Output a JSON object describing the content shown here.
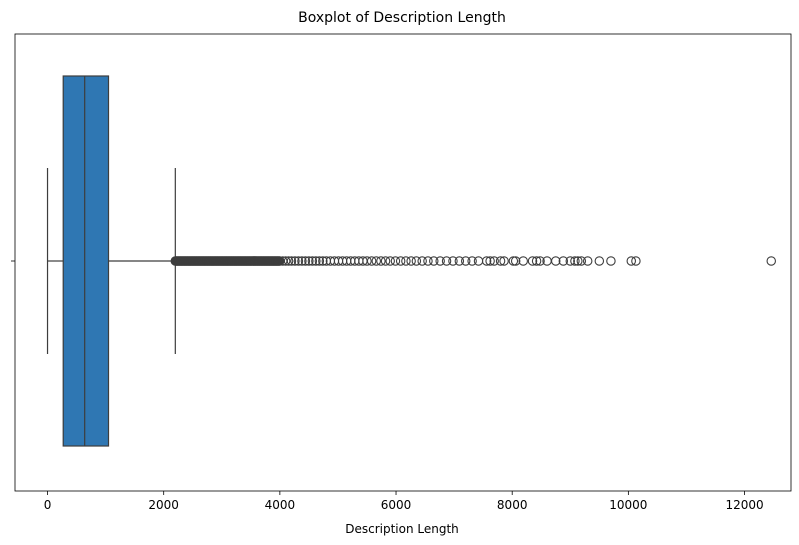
{
  "chart_data": {
    "type": "boxplot",
    "title": "Boxplot of Description Length",
    "xlabel": "Description Length",
    "ylabel": "",
    "xlim": [
      -560,
      12800
    ],
    "xticks": [
      0,
      2000,
      4000,
      6000,
      8000,
      10000,
      12000
    ],
    "xtick_labels": [
      "0",
      "2000",
      "4000",
      "6000",
      "8000",
      "10000",
      "12000"
    ],
    "grid": false,
    "box": {
      "whisker_low": 0,
      "q1": 270,
      "median": 640,
      "q3": 1050,
      "whisker_high": 2200,
      "color": "#2f77b3",
      "line_color": "#3d3d3d"
    },
    "outlier_dense_range": [
      2200,
      4000
    ],
    "outliers": [
      4050,
      4100,
      4150,
      4200,
      4260,
      4320,
      4380,
      4440,
      4500,
      4560,
      4620,
      4680,
      4740,
      4800,
      4870,
      4940,
      5010,
      5080,
      5150,
      5220,
      5290,
      5360,
      5430,
      5500,
      5580,
      5660,
      5740,
      5820,
      5900,
      5990,
      6080,
      6170,
      6260,
      6350,
      6450,
      6550,
      6650,
      6760,
      6870,
      6980,
      7090,
      7200,
      7310,
      7420,
      7560,
      7620,
      7690,
      7800,
      7860,
      8020,
      8060,
      8190,
      8350,
      8420,
      8480,
      8600,
      8750,
      8880,
      9000,
      9080,
      9130,
      9190,
      9300,
      9500,
      9700,
      10050,
      10130,
      12460
    ]
  }
}
